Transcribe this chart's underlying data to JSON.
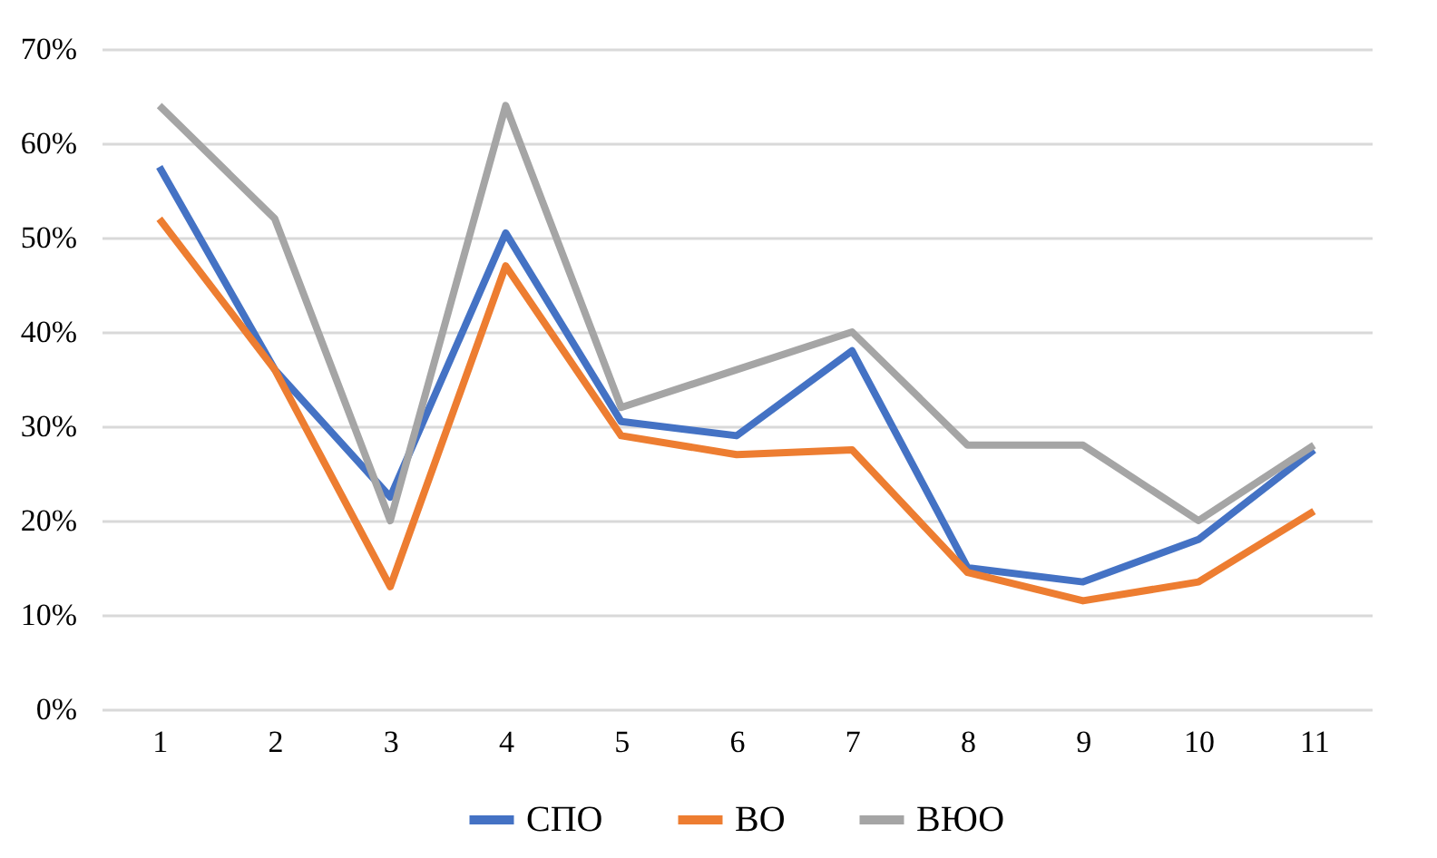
{
  "chart_data": {
    "type": "line",
    "categories": [
      "1",
      "2",
      "3",
      "4",
      "5",
      "6",
      "7",
      "8",
      "9",
      "10",
      "11"
    ],
    "series": [
      {
        "name": "СПО",
        "color": "#4472c4",
        "values": [
          57.5,
          36,
          22.5,
          50.5,
          30.5,
          29,
          38,
          15,
          13.5,
          18,
          27.5
        ]
      },
      {
        "name": "ВО",
        "color": "#ed7d31",
        "values": [
          52,
          36,
          13,
          47,
          29,
          27,
          27.5,
          14.5,
          11.5,
          13.5,
          21
        ]
      },
      {
        "name": "ВЮО",
        "color": "#a5a5a5",
        "values": [
          64,
          52,
          20,
          64,
          32,
          36,
          40,
          28,
          28,
          20,
          28
        ]
      }
    ],
    "ylim": [
      0,
      70
    ],
    "yticks": [
      {
        "value": 0,
        "label": "0%"
      },
      {
        "value": 10,
        "label": "10%"
      },
      {
        "value": 20,
        "label": "20%"
      },
      {
        "value": 30,
        "label": "30%"
      },
      {
        "value": 40,
        "label": "40%"
      },
      {
        "value": 50,
        "label": "50%"
      },
      {
        "value": 60,
        "label": "60%"
      },
      {
        "value": 70,
        "label": "70%"
      }
    ],
    "grid": "y",
    "legend": "bottom",
    "marker": "none",
    "line_style": "solid"
  }
}
